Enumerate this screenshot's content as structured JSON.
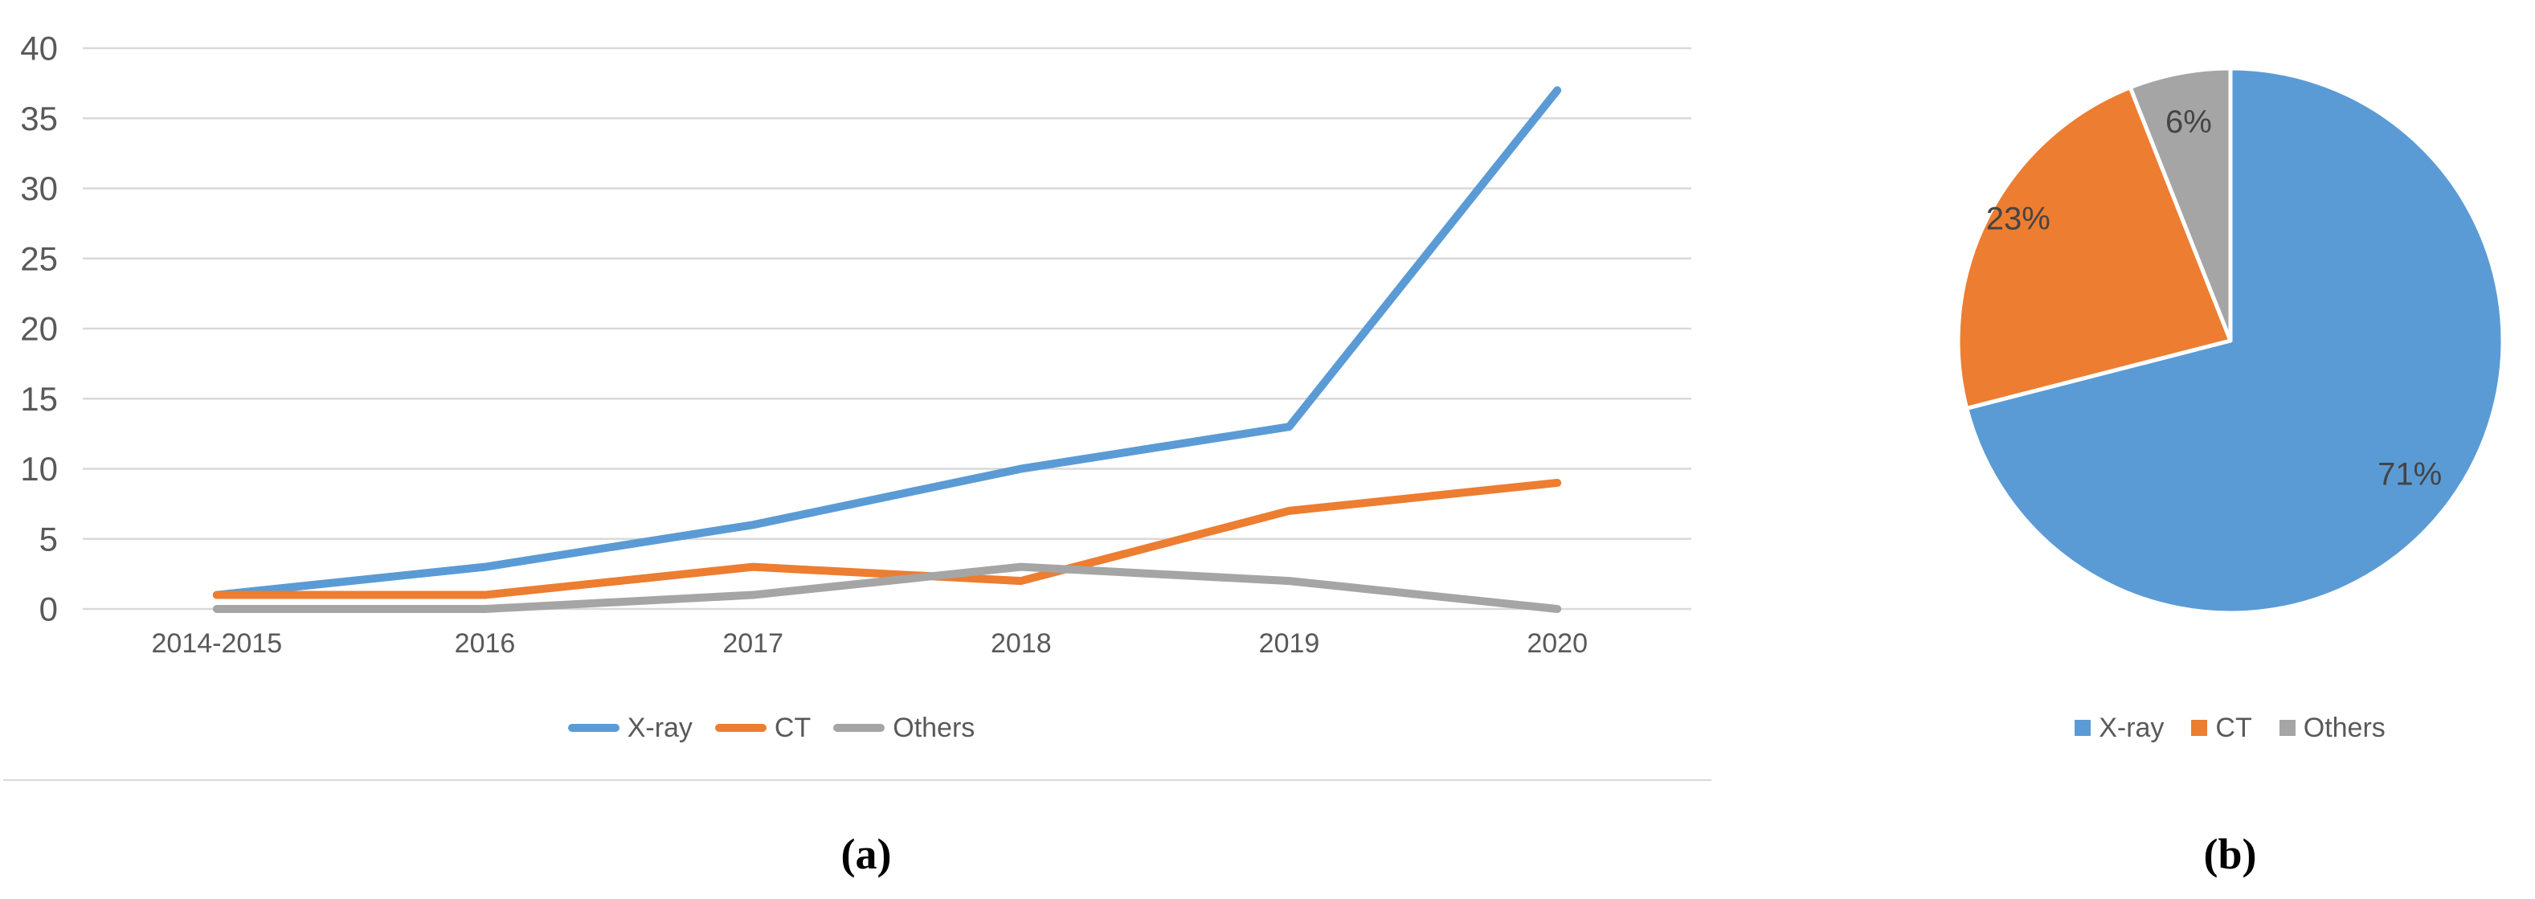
{
  "captions": {
    "a": "(a)",
    "b": "(b)"
  },
  "colors": {
    "xray": "#5B9BD5",
    "ct": "#ED7D31",
    "others": "#A5A5A5",
    "axis_text": "#595959",
    "gridline": "#D9D9D9",
    "pie_label": "#444444",
    "background": "#FFFFFF"
  },
  "chart_data": [
    {
      "type": "line",
      "title": "",
      "xlabel": "",
      "ylabel": "",
      "categories": [
        "2014-2015",
        "2016",
        "2017",
        "2018",
        "2019",
        "2020"
      ],
      "series": [
        {
          "name": "X-ray",
          "color": "#5B9BD5",
          "values": [
            1,
            3,
            6,
            10,
            13,
            37
          ]
        },
        {
          "name": "CT",
          "color": "#ED7D31",
          "values": [
            1,
            1,
            3,
            2,
            7,
            9
          ]
        },
        {
          "name": "Others",
          "color": "#A5A5A5",
          "values": [
            0,
            0,
            1,
            3,
            2,
            0
          ]
        }
      ],
      "ylim": [
        0,
        40
      ],
      "ytick_step": 5,
      "ytick_labels": [
        "0",
        "5",
        "10",
        "15",
        "20",
        "25",
        "30",
        "35",
        "40"
      ],
      "grid": true,
      "legend_position": "bottom"
    },
    {
      "type": "pie",
      "title": "",
      "labels": [
        "X-ray",
        "CT",
        "Others"
      ],
      "values": [
        71,
        23,
        6
      ],
      "value_labels": [
        "71%",
        "23%",
        "6%"
      ],
      "colors": [
        "#5B9BD5",
        "#ED7D31",
        "#A5A5A5"
      ],
      "start_angle_deg": 0,
      "direction": "clockwise",
      "legend_position": "bottom"
    }
  ]
}
